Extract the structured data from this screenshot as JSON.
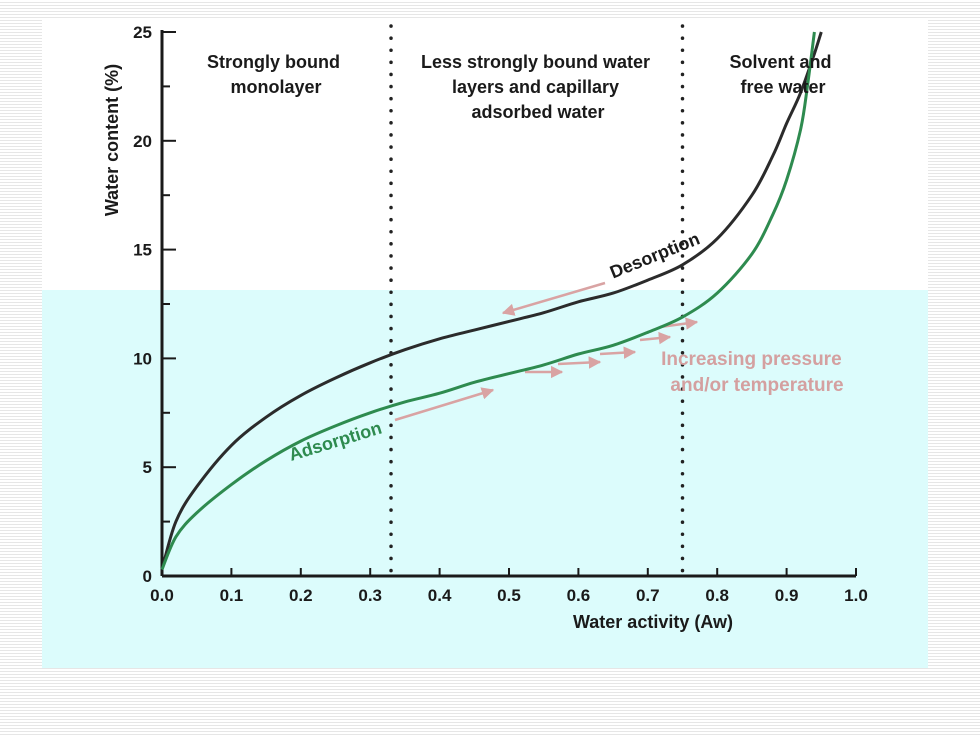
{
  "chart_data": {
    "type": "line",
    "title": "",
    "xlabel": "Water activity (Aw)",
    "ylabel": "Water content (%)",
    "xlim": [
      0.0,
      1.0
    ],
    "ylim": [
      0,
      25
    ],
    "x_ticks": [
      "0.0",
      "0.1",
      "0.2",
      "0.3",
      "0.4",
      "0.5",
      "0.6",
      "0.7",
      "0.8",
      "0.9",
      "1.0"
    ],
    "y_ticks": [
      "0",
      "5",
      "10",
      "15",
      "20",
      "25"
    ],
    "grid": false,
    "region_boundaries": [
      0.33,
      0.75
    ],
    "regions": [
      {
        "lines": [
          "Strongly bound",
          "monolayer"
        ]
      },
      {
        "lines": [
          "Less strongly bound water",
          "layers and capillary",
          "adsorbed water"
        ]
      },
      {
        "lines": [
          "Solvent and",
          "free water"
        ]
      }
    ],
    "series": [
      {
        "name": "Desorption",
        "color": "#2b2b2b",
        "x": [
          0.0,
          0.02,
          0.05,
          0.1,
          0.15,
          0.2,
          0.25,
          0.3,
          0.35,
          0.4,
          0.45,
          0.5,
          0.55,
          0.6,
          0.65,
          0.7,
          0.75,
          0.8,
          0.85,
          0.88,
          0.9,
          0.92,
          0.94,
          0.95
        ],
        "y": [
          0.3,
          2.5,
          4.1,
          6.0,
          7.3,
          8.3,
          9.1,
          9.8,
          10.4,
          10.9,
          11.3,
          11.7,
          12.1,
          12.6,
          13.0,
          13.6,
          14.3,
          15.5,
          17.5,
          19.3,
          20.8,
          22.2,
          24.0,
          25.0
        ]
      },
      {
        "name": "Adsorption",
        "color": "#2e8b4f",
        "x": [
          0.0,
          0.02,
          0.05,
          0.1,
          0.15,
          0.2,
          0.25,
          0.3,
          0.35,
          0.4,
          0.45,
          0.5,
          0.55,
          0.6,
          0.65,
          0.7,
          0.75,
          0.8,
          0.85,
          0.88,
          0.9,
          0.92,
          0.93,
          0.94
        ],
        "y": [
          0.3,
          1.8,
          2.9,
          4.2,
          5.3,
          6.2,
          6.9,
          7.5,
          8.0,
          8.4,
          8.9,
          9.3,
          9.7,
          10.2,
          10.6,
          11.2,
          11.9,
          13.0,
          14.8,
          16.6,
          18.2,
          20.5,
          22.5,
          25.0
        ]
      }
    ],
    "annotations": [
      {
        "lines": [
          "Increasing pressure",
          "and/or temperature"
        ],
        "color": "#d4a0a0"
      }
    ]
  }
}
